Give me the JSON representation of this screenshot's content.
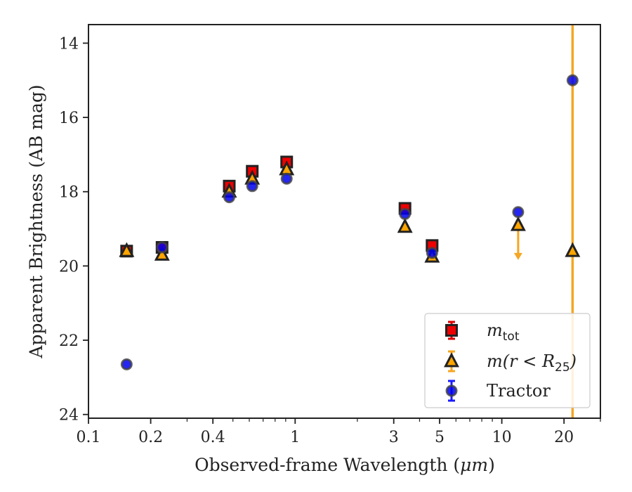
{
  "chart_data": {
    "type": "scatter",
    "title": "",
    "xlabel": "Observed-frame Wavelength (",
    "xlabel_unit": "μm",
    "xlabel_close": ")",
    "ylabel": "Apparent Brightness (AB mag)",
    "xscale": "log",
    "xlim": [
      0.1,
      30
    ],
    "ylim": [
      24.1,
      13.5
    ],
    "y_inverted": true,
    "xticks": [
      0.1,
      0.2,
      0.4,
      1,
      3,
      5,
      10,
      20
    ],
    "xtick_labels": [
      "0.1",
      "0.2",
      "0.4",
      "1",
      "3",
      "5",
      "10",
      "20"
    ],
    "yticks": [
      14,
      16,
      18,
      20,
      22,
      24
    ],
    "ytick_labels": [
      "14",
      "16",
      "18",
      "20",
      "22",
      "24"
    ],
    "grid": false,
    "legend_position": "lower-right",
    "colors": {
      "mtot": "#ee0000",
      "mr25": "#ffa500",
      "tractor": "#0000ee",
      "errorbar_mtot": "#dd0000",
      "errorbar_mr25": "#f5a623",
      "errorbar_tractor": "#1a1aff",
      "marker_edge": "#222222"
    },
    "series": [
      {
        "name": "m_tot",
        "legend_main": "m",
        "legend_sub": "tot",
        "marker": "square",
        "points": [
          {
            "x": 0.153,
            "y": 19.6
          },
          {
            "x": 0.227,
            "y": 19.5
          },
          {
            "x": 0.48,
            "y": 17.85
          },
          {
            "x": 0.62,
            "y": 17.45
          },
          {
            "x": 0.91,
            "y": 17.2
          },
          {
            "x": 3.4,
            "y": 18.45
          },
          {
            "x": 4.6,
            "y": 19.45
          }
        ]
      },
      {
        "name": "m(r<R_25)",
        "legend_main": "m(r < R",
        "legend_sub": "25",
        "legend_close": ")",
        "marker": "triangle",
        "points": [
          {
            "x": 0.153,
            "y": 19.6
          },
          {
            "x": 0.227,
            "y": 19.7
          },
          {
            "x": 0.48,
            "y": 18.0
          },
          {
            "x": 0.62,
            "y": 17.65
          },
          {
            "x": 0.91,
            "y": 17.4
          },
          {
            "x": 3.4,
            "y": 18.95
          },
          {
            "x": 4.6,
            "y": 19.75
          },
          {
            "x": 12.0,
            "y": 18.9,
            "upper_limit": true,
            "arrow_to": 19.8
          },
          {
            "x": 22.0,
            "y": 19.6,
            "error_full_range": true
          }
        ]
      },
      {
        "name": "Tractor",
        "legend_main": "Tractor",
        "marker": "circle",
        "points": [
          {
            "x": 0.153,
            "y": 22.65
          },
          {
            "x": 0.227,
            "y": 19.5
          },
          {
            "x": 0.48,
            "y": 18.15
          },
          {
            "x": 0.62,
            "y": 17.85
          },
          {
            "x": 0.91,
            "y": 17.65
          },
          {
            "x": 3.4,
            "y": 18.6
          },
          {
            "x": 4.6,
            "y": 19.65
          },
          {
            "x": 12.0,
            "y": 18.55
          },
          {
            "x": 22.0,
            "y": 15.0
          }
        ]
      }
    ]
  }
}
